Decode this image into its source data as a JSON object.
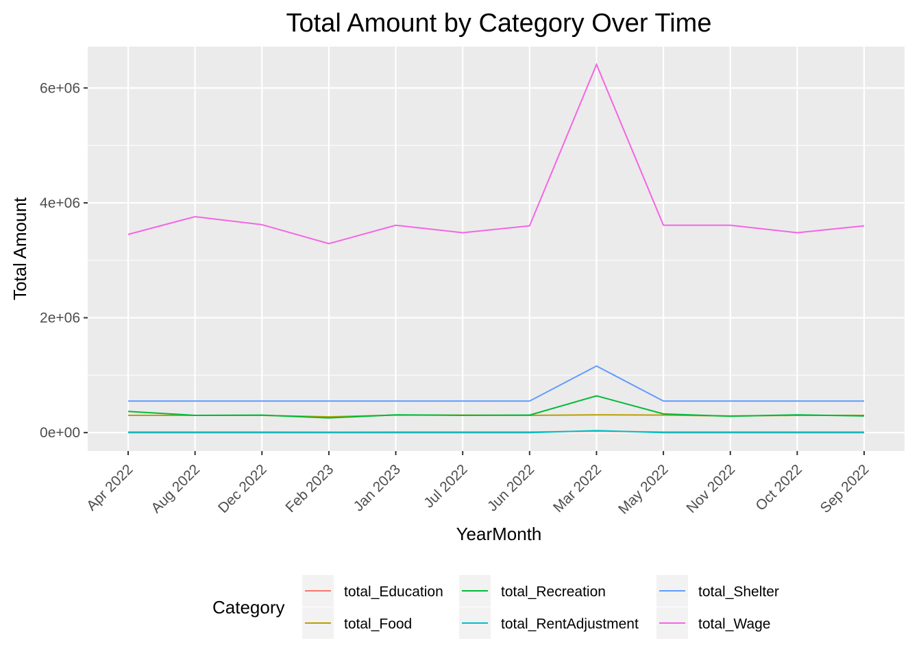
{
  "chart_data": {
    "type": "line",
    "title": "Total Amount by Category Over Time",
    "xlabel": "YearMonth",
    "ylabel": "Total Amount",
    "categories": [
      "Apr 2022",
      "Aug 2022",
      "Dec 2022",
      "Feb 2023",
      "Jan 2023",
      "Jul 2022",
      "Jun 2022",
      "Mar 2022",
      "May 2022",
      "Nov 2022",
      "Oct 2022",
      "Sep 2022"
    ],
    "ylim": [
      -320000,
      6720000
    ],
    "yticks": [
      0,
      2000000,
      4000000,
      6000000
    ],
    "ytick_labels": [
      "0e+00",
      "2e+06",
      "4e+06",
      "6e+06"
    ],
    "grid": true,
    "legend": {
      "title": "Category",
      "position": "bottom"
    },
    "series": [
      {
        "name": "total_Education",
        "color": "#F8766D",
        "values": [
          10000,
          10000,
          10000,
          9000,
          10000,
          10000,
          10000,
          25000,
          10000,
          10000,
          10000,
          10000
        ]
      },
      {
        "name": "total_Food",
        "color": "#B79F00",
        "values": [
          300000,
          300000,
          300000,
          275000,
          305000,
          305000,
          300000,
          310000,
          305000,
          290000,
          300000,
          300000
        ]
      },
      {
        "name": "total_Recreation",
        "color": "#00BA38",
        "values": [
          370000,
          300000,
          305000,
          255000,
          310000,
          300000,
          305000,
          640000,
          325000,
          285000,
          310000,
          290000
        ]
      },
      {
        "name": "total_RentAdjustment",
        "color": "#00BFC4",
        "values": [
          0,
          0,
          0,
          0,
          0,
          0,
          0,
          35000,
          0,
          0,
          0,
          0
        ]
      },
      {
        "name": "total_Shelter",
        "color": "#619CFF",
        "values": [
          550000,
          550000,
          550000,
          550000,
          550000,
          550000,
          550000,
          1160000,
          550000,
          550000,
          550000,
          550000
        ]
      },
      {
        "name": "total_Wage",
        "color": "#F564E3",
        "values": [
          3450000,
          3760000,
          3620000,
          3290000,
          3610000,
          3480000,
          3600000,
          6410000,
          3610000,
          3610000,
          3480000,
          3600000
        ]
      }
    ]
  }
}
